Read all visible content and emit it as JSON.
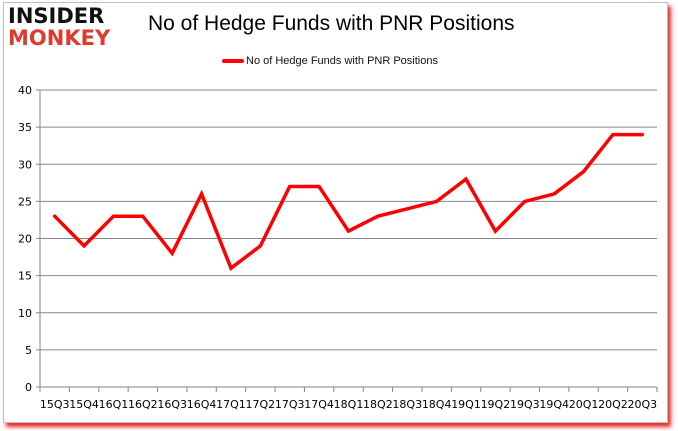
{
  "header": {
    "logo_line1": "INSIDER",
    "logo_line2": "MONKEY",
    "title": "No of Hedge Funds with PNR Positions"
  },
  "legend": {
    "label": "No of Hedge Funds with PNR Positions",
    "color": "#ff0000"
  },
  "chart_data": {
    "type": "line",
    "title": "No of Hedge Funds with PNR Positions",
    "xlabel": "",
    "ylabel": "",
    "ylim": [
      0,
      40
    ],
    "yticks": [
      0,
      5,
      10,
      15,
      20,
      25,
      30,
      35,
      40
    ],
    "grid": true,
    "legend_position": "top",
    "categories": [
      "15Q3",
      "15Q4",
      "16Q1",
      "16Q2",
      "16Q3",
      "16Q4",
      "17Q1",
      "17Q2",
      "17Q3",
      "17Q4",
      "18Q1",
      "18Q2",
      "18Q3",
      "18Q4",
      "19Q1",
      "19Q2",
      "19Q3",
      "19Q4",
      "20Q1",
      "20Q2",
      "20Q3"
    ],
    "series": [
      {
        "name": "No of Hedge Funds with PNR Positions",
        "color": "#ff0000",
        "values": [
          23,
          19,
          23,
          23,
          18,
          26,
          16,
          19,
          27,
          27,
          21,
          23,
          24,
          25,
          28,
          21,
          25,
          26,
          29,
          34,
          34
        ]
      }
    ]
  }
}
